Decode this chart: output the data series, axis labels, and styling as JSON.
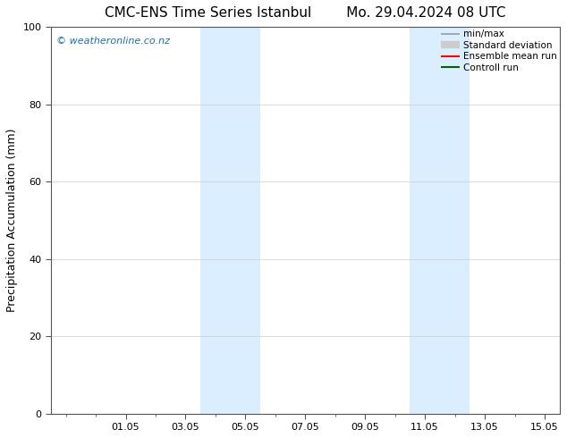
{
  "title": "CMC-ENS Time Series Istanbul        Mo. 29.04.2024 08 UTC",
  "ylabel": "Precipitation Accumulation (mm)",
  "ylim": [
    0,
    100
  ],
  "yticks": [
    0,
    20,
    40,
    60,
    80,
    100
  ],
  "xlim": [
    -0.5,
    16.5
  ],
  "xtick_positions": [
    2,
    4,
    6,
    8,
    10,
    12,
    14,
    16
  ],
  "xtick_labels": [
    "01.05",
    "03.05",
    "05.05",
    "07.05",
    "09.05",
    "11.05",
    "13.05",
    "15.05"
  ],
  "shaded_regions": [
    {
      "x_start": 4.5,
      "x_end": 5.5
    },
    {
      "x_start": 5.5,
      "x_end": 6.5
    },
    {
      "x_start": 11.5,
      "x_end": 12.25
    },
    {
      "x_start": 12.25,
      "x_end": 13.5
    }
  ],
  "shade_color": "#daeeff",
  "watermark_text": "© weatheronline.co.nz",
  "watermark_color": "#1a6eb5",
  "background_color": "#ffffff",
  "legend_entries": [
    {
      "label": "min/max",
      "color": "#999999",
      "lw": 1.2
    },
    {
      "label": "Standard deviation",
      "color": "#cccccc",
      "lw": 6
    },
    {
      "label": "Ensemble mean run",
      "color": "#ff0000",
      "lw": 1.5
    },
    {
      "label": "Controll run",
      "color": "#006400",
      "lw": 1.5
    }
  ],
  "spine_color": "#555555",
  "title_fontsize": 11,
  "axis_label_fontsize": 9,
  "tick_fontsize": 8,
  "watermark_fontsize": 8,
  "legend_fontsize": 7.5
}
